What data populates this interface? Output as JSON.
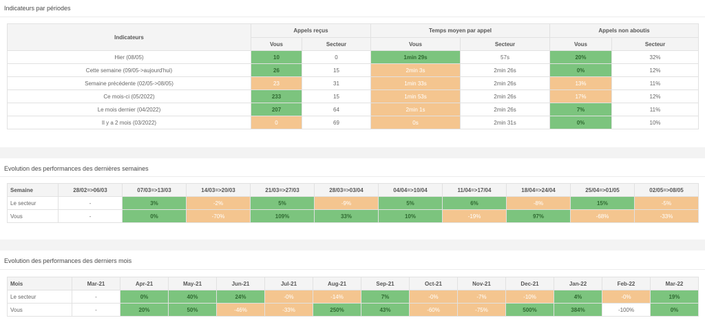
{
  "periods": {
    "title": "Indicateurs par périodes",
    "headers": {
      "indicateurs": "Indicateurs",
      "appels": "Appels reçus",
      "temps": "Temps moyen par appel",
      "non_aboutis": "Appels non aboutis",
      "vous": "Vous",
      "secteur": "Secteur"
    },
    "rows": [
      {
        "label": "Hier (08/05)",
        "appels_vous": "10",
        "appels_vous_status": "good",
        "appels_secteur": "0",
        "temps_vous": "1min 29s",
        "temps_vous_status": "good",
        "temps_secteur": "57s",
        "na_vous": "20%",
        "na_vous_status": "good",
        "na_secteur": "32%"
      },
      {
        "label": "Cette semaine (09/05->aujourd'hui)",
        "appels_vous": "26",
        "appels_vous_status": "good",
        "appels_secteur": "15",
        "temps_vous": "2min 3s",
        "temps_vous_status": "bad",
        "temps_secteur": "2min 26s",
        "na_vous": "0%",
        "na_vous_status": "good",
        "na_secteur": "12%"
      },
      {
        "label": "Semaine précédente (02/05->08/05)",
        "appels_vous": "23",
        "appels_vous_status": "bad",
        "appels_secteur": "31",
        "temps_vous": "1min 33s",
        "temps_vous_status": "bad",
        "temps_secteur": "2min 26s",
        "na_vous": "13%",
        "na_vous_status": "bad",
        "na_secteur": "11%"
      },
      {
        "label": "Ce mois-ci (05/2022)",
        "appels_vous": "233",
        "appels_vous_status": "good",
        "appels_secteur": "15",
        "temps_vous": "1min 53s",
        "temps_vous_status": "bad",
        "temps_secteur": "2min 26s",
        "na_vous": "17%",
        "na_vous_status": "bad",
        "na_secteur": "12%"
      },
      {
        "label": "Le mois dernier (04/2022)",
        "appels_vous": "207",
        "appels_vous_status": "good",
        "appels_secteur": "64",
        "temps_vous": "2min 1s",
        "temps_vous_status": "bad",
        "temps_secteur": "2min 26s",
        "na_vous": "7%",
        "na_vous_status": "good",
        "na_secteur": "11%"
      },
      {
        "label": "Il y a 2 mois (03/2022)",
        "appels_vous": "0",
        "appels_vous_status": "bad",
        "appels_secteur": "69",
        "temps_vous": "0s",
        "temps_vous_status": "bad",
        "temps_secteur": "2min 31s",
        "na_vous": "0%",
        "na_vous_status": "good",
        "na_secteur": "10%"
      }
    ]
  },
  "weeks": {
    "title": "Evolution des performances des dernières semaines",
    "corner": "Semaine",
    "columns": [
      "28/02=>06/03",
      "07/03=>13/03",
      "14/03=>20/03",
      "21/03=>27/03",
      "28/03=>03/04",
      "04/04=>10/04",
      "11/04=>17/04",
      "18/04=>24/04",
      "25/04=>01/05",
      "02/05=>08/05"
    ],
    "rows": [
      {
        "label": "Le secteur",
        "cells": [
          {
            "v": "-",
            "s": "none"
          },
          {
            "v": "3%",
            "s": "good"
          },
          {
            "v": "-2%",
            "s": "bad"
          },
          {
            "v": "5%",
            "s": "good"
          },
          {
            "v": "-9%",
            "s": "bad"
          },
          {
            "v": "5%",
            "s": "good"
          },
          {
            "v": "6%",
            "s": "good"
          },
          {
            "v": "-8%",
            "s": "bad"
          },
          {
            "v": "15%",
            "s": "good"
          },
          {
            "v": "-5%",
            "s": "bad"
          }
        ]
      },
      {
        "label": "Vous",
        "cells": [
          {
            "v": "-",
            "s": "none"
          },
          {
            "v": "0%",
            "s": "good"
          },
          {
            "v": "-70%",
            "s": "bad"
          },
          {
            "v": "109%",
            "s": "good"
          },
          {
            "v": "33%",
            "s": "good"
          },
          {
            "v": "10%",
            "s": "good"
          },
          {
            "v": "-19%",
            "s": "bad"
          },
          {
            "v": "97%",
            "s": "good"
          },
          {
            "v": "-68%",
            "s": "bad"
          },
          {
            "v": "-33%",
            "s": "bad"
          }
        ]
      }
    ]
  },
  "months": {
    "title": "Evolution des performances des derniers mois",
    "corner": "Mois",
    "columns": [
      "Mar-21",
      "Apr-21",
      "May-21",
      "Jun-21",
      "Jul-21",
      "Aug-21",
      "Sep-21",
      "Oct-21",
      "Nov-21",
      "Dec-21",
      "Jan-22",
      "Feb-22",
      "Mar-22"
    ],
    "rows": [
      {
        "label": "Le secteur",
        "cells": [
          {
            "v": "-",
            "s": "none"
          },
          {
            "v": "0%",
            "s": "good"
          },
          {
            "v": "40%",
            "s": "good"
          },
          {
            "v": "24%",
            "s": "good"
          },
          {
            "v": "-0%",
            "s": "bad"
          },
          {
            "v": "-14%",
            "s": "bad"
          },
          {
            "v": "7%",
            "s": "good"
          },
          {
            "v": "-0%",
            "s": "bad"
          },
          {
            "v": "-7%",
            "s": "bad"
          },
          {
            "v": "-10%",
            "s": "bad"
          },
          {
            "v": "4%",
            "s": "good"
          },
          {
            "v": "-0%",
            "s": "bad"
          },
          {
            "v": "19%",
            "s": "good"
          }
        ]
      },
      {
        "label": "Vous",
        "cells": [
          {
            "v": "-",
            "s": "none"
          },
          {
            "v": "20%",
            "s": "good"
          },
          {
            "v": "50%",
            "s": "good"
          },
          {
            "v": "-46%",
            "s": "bad"
          },
          {
            "v": "-33%",
            "s": "bad"
          },
          {
            "v": "250%",
            "s": "good"
          },
          {
            "v": "43%",
            "s": "good"
          },
          {
            "v": "-60%",
            "s": "bad"
          },
          {
            "v": "-75%",
            "s": "bad"
          },
          {
            "v": "500%",
            "s": "good"
          },
          {
            "v": "384%",
            "s": "good"
          },
          {
            "v": "-100%",
            "s": "none"
          },
          {
            "v": "0%",
            "s": "good"
          }
        ]
      }
    ]
  },
  "colors": {
    "good": "#7cc47e",
    "bad": "#f4c58f",
    "band": "#f3f3f3"
  }
}
